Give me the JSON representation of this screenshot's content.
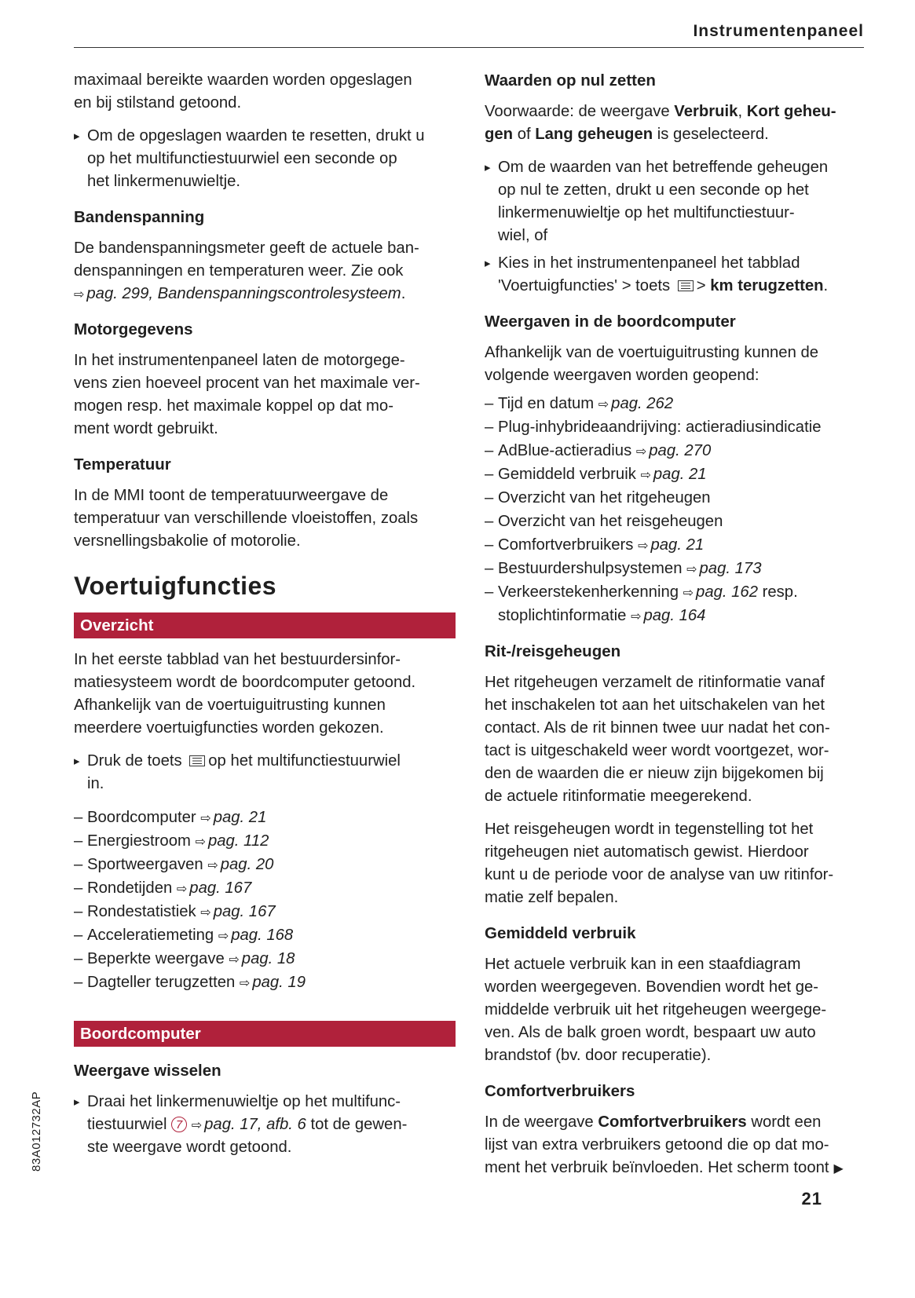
{
  "header": {
    "title": "Instrumentenpaneel"
  },
  "page_number": "21",
  "side_code": "83A012732AP",
  "accent_color": "#b0213b",
  "left": [
    {
      "type": "p",
      "lines": [
        [
          "maximaal bereikte waarden worden opgeslagen"
        ],
        [
          "en bij stilstand getoond."
        ]
      ]
    },
    {
      "type": "bullet",
      "lines": [
        [
          "Om de opgeslagen waarden te resetten, drukt u"
        ],
        [
          "op het multifunctiestuurwiel een seconde op"
        ],
        [
          "het linkermenuwieltje."
        ]
      ]
    },
    {
      "type": "h3",
      "text": "Bandenspanning"
    },
    {
      "type": "p",
      "lines": [
        [
          "De bandenspanningsmeter geeft de actuele ban-"
        ],
        [
          "denspanningen en temperaturen weer. Zie ook"
        ],
        [
          {
            "ref": "pag. 299, Bandenspanningscontrolesysteem"
          },
          "."
        ]
      ]
    },
    {
      "type": "h3",
      "text": "Motorgegevens"
    },
    {
      "type": "p",
      "lines": [
        [
          "In het instrumentenpaneel laten de motorgege-"
        ],
        [
          "vens zien hoeveel procent van het maximale ver-"
        ],
        [
          "mogen resp. het maximale koppel op dat mo-"
        ],
        [
          "ment wordt gebruikt."
        ]
      ]
    },
    {
      "type": "h3",
      "text": "Temperatuur"
    },
    {
      "type": "p",
      "lines": [
        [
          "In de MMI toont de temperatuurweergave de"
        ],
        [
          "temperatuur van verschillende vloeistoffen, zoals"
        ],
        [
          "versnellingsbakolie of motorolie."
        ]
      ]
    },
    {
      "type": "h1",
      "text": "Voertuigfuncties"
    },
    {
      "type": "bar",
      "text": "Overzicht"
    },
    {
      "type": "p",
      "lines": [
        [
          "In het eerste tabblad van het bestuurdersinfor-"
        ],
        [
          "matiesysteem wordt de boordcomputer getoond."
        ],
        [
          "Afhankelijk van de voertuiguitrusting kunnen"
        ],
        [
          "meerdere voertuigfuncties worden gekozen."
        ]
      ]
    },
    {
      "type": "bullet",
      "lines": [
        [
          "Druk de toets ",
          {
            "icon": "menu-button-icon"
          },
          "op het multifunctiestuurwiel"
        ],
        [
          "in."
        ]
      ]
    },
    {
      "type": "dash",
      "items": [
        [
          [
            "Boordcomputer ",
            {
              "ref": "pag. 21"
            }
          ]
        ],
        [
          [
            "Energiestroom ",
            {
              "ref": "pag. 112"
            }
          ]
        ],
        [
          [
            "Sportweergaven ",
            {
              "ref": "pag. 20"
            }
          ]
        ],
        [
          [
            "Rondetijden ",
            {
              "ref": "pag. 167"
            }
          ]
        ],
        [
          [
            "Rondestatistiek ",
            {
              "ref": "pag. 167"
            }
          ]
        ],
        [
          [
            "Acceleratiemeting ",
            {
              "ref": "pag. 168"
            }
          ]
        ],
        [
          [
            "Beperkte weergave ",
            {
              "ref": "pag. 18"
            }
          ]
        ],
        [
          [
            "Dagteller terugzetten ",
            {
              "ref": "pag. 19"
            }
          ]
        ]
      ]
    },
    {
      "type": "bar",
      "text": "Boordcomputer",
      "gap": true
    },
    {
      "type": "h3",
      "text": "Weergave wisselen"
    },
    {
      "type": "bullet",
      "lines": [
        [
          "Draai het linkermenuwieltje op het multifunc-"
        ],
        [
          "tiestuurwiel ",
          {
            "circle": "7"
          },
          " ",
          {
            "ref": "pag. 17, afb. 6"
          },
          " tot de gewen-"
        ],
        [
          "ste weergave wordt getoond."
        ]
      ]
    }
  ],
  "right": [
    {
      "type": "h3",
      "text": "Waarden op nul zetten"
    },
    {
      "type": "p",
      "lines": [
        [
          "Voorwaarde: de weergave ",
          {
            "b": "Verbruik"
          },
          ", ",
          {
            "b": "Kort geheu-"
          }
        ],
        [
          {
            "b": "gen"
          },
          " of ",
          {
            "b": "Lang geheugen"
          },
          " is geselecteerd."
        ]
      ]
    },
    {
      "type": "bullet",
      "lines": [
        [
          "Om de waarden van het betreffende geheugen"
        ],
        [
          "op nul te zetten, drukt u een seconde op het"
        ],
        [
          "linkermenuwieltje op het multifunctiestuur-"
        ],
        [
          "wiel, of"
        ]
      ]
    },
    {
      "type": "bullet",
      "tight": true,
      "lines": [
        [
          "Kies in het instrumentenpaneel het tabblad"
        ],
        [
          "'Voertuigfuncties' > toets ",
          {
            "icon": "menu-button-icon"
          },
          "> ",
          {
            "b": "km terugzetten"
          },
          "."
        ]
      ]
    },
    {
      "type": "h3",
      "text": "Weergaven in de boordcomputer"
    },
    {
      "type": "p",
      "lines": [
        [
          "Afhankelijk van de voertuiguitrusting kunnen de"
        ],
        [
          "volgende weergaven worden geopend:"
        ]
      ]
    },
    {
      "type": "dash",
      "tight": true,
      "items": [
        [
          [
            "Tijd en datum ",
            {
              "ref": "pag. 262"
            }
          ]
        ],
        [
          [
            "Plug-inhybrideaandrijving: actieradiusindicatie"
          ]
        ],
        [
          [
            "AdBlue-actieradius ",
            {
              "ref": "pag. 270"
            }
          ]
        ],
        [
          [
            "Gemiddeld verbruik ",
            {
              "ref": "pag. 21"
            }
          ]
        ],
        [
          [
            "Overzicht van het ritgeheugen"
          ]
        ],
        [
          [
            "Overzicht van het reisgeheugen"
          ]
        ],
        [
          [
            "Comfortverbruikers ",
            {
              "ref": "pag. 21"
            }
          ]
        ],
        [
          [
            "Bestuurdershulpsystemen ",
            {
              "ref": "pag. 173"
            }
          ]
        ],
        [
          [
            "Verkeerstekenherkenning ",
            {
              "ref": "pag. 162"
            },
            " resp."
          ],
          [
            "stoplichtinformatie ",
            {
              "ref": "pag. 164"
            }
          ]
        ]
      ]
    },
    {
      "type": "h3",
      "text": "Rit-/reisgeheugen"
    },
    {
      "type": "p",
      "lines": [
        [
          "Het ritgeheugen verzamelt de ritinformatie vanaf"
        ],
        [
          "het inschakelen tot aan het uitschakelen van het"
        ],
        [
          "contact. Als de rit binnen twee uur nadat het con-"
        ],
        [
          "tact is uitgeschakeld weer wordt voortgezet, wor-"
        ],
        [
          "den de waarden die er nieuw zijn bijgekomen bij"
        ],
        [
          "de actuele ritinformatie meegerekend."
        ]
      ]
    },
    {
      "type": "p",
      "lines": [
        [
          "Het reisgeheugen wordt in tegenstelling tot het"
        ],
        [
          "ritgeheugen niet automatisch gewist. Hierdoor"
        ],
        [
          "kunt u de periode voor de analyse van uw ritinfor-"
        ],
        [
          "matie zelf bepalen."
        ]
      ]
    },
    {
      "type": "h3",
      "text": "Gemiddeld verbruik"
    },
    {
      "type": "p",
      "lines": [
        [
          "Het actuele verbruik kan in een staafdiagram"
        ],
        [
          "worden weergegeven. Bovendien wordt het ge-"
        ],
        [
          "middelde verbruik uit het ritgeheugen weergege-"
        ],
        [
          "ven. Als de balk groen wordt, bespaart uw auto"
        ],
        [
          "brandstof (bv. door recuperatie)."
        ]
      ]
    },
    {
      "type": "h3",
      "text": "Comfortverbruikers"
    },
    {
      "type": "p",
      "lines": [
        [
          "In de weergave ",
          {
            "b": "Comfortverbruikers"
          },
          " wordt een"
        ],
        [
          "lijst van extra verbruikers getoond die op dat mo-"
        ],
        [
          "ment het verbruik beïnvloeden. Het scherm toont",
          {
            "cont": "continued-icon"
          }
        ]
      ]
    }
  ]
}
